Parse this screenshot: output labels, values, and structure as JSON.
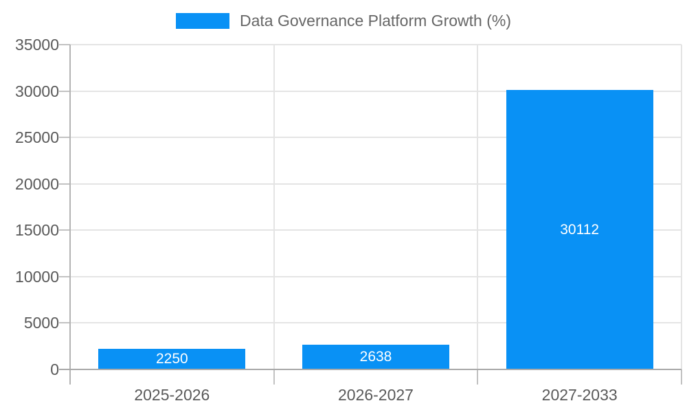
{
  "chart_data": {
    "type": "bar",
    "title": "Data Governance Platform Growth (%)",
    "categories": [
      "2025-2026",
      "2026-2027",
      "2027-2033"
    ],
    "values": [
      2250,
      2638,
      30112
    ],
    "value_labels": [
      "2250",
      "2638",
      "30112"
    ],
    "xlabel": "",
    "ylabel": "",
    "ylim": [
      0,
      35000
    ],
    "ytick_step": 5000,
    "ytick_labels": [
      "0",
      "5000",
      "10000",
      "15000",
      "20000",
      "25000",
      "30000",
      "35000"
    ],
    "grid": true,
    "legend_position": "top-center",
    "colors": {
      "bar": "#0991f5",
      "value_label_text": "#ffffff",
      "legend_text": "#666666",
      "axis_text": "#595959",
      "gridline": "#e4e4e4",
      "axis_line": "#b3b3b3",
      "baseline": "#a8a8a8",
      "tick": "#c2c2c2",
      "background": "#ffffff"
    }
  }
}
